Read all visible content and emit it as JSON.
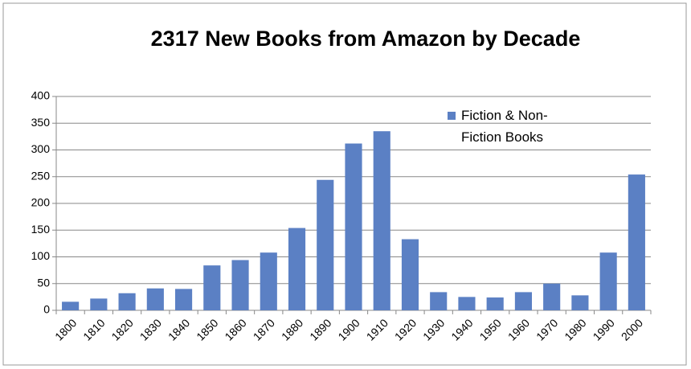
{
  "chart_data": {
    "type": "bar",
    "title": "2317 New Books from Amazon by Decade",
    "categories": [
      "1800",
      "1810",
      "1820",
      "1830",
      "1840",
      "1850",
      "1860",
      "1870",
      "1880",
      "1890",
      "1900",
      "1910",
      "1920",
      "1930",
      "1940",
      "1950",
      "1960",
      "1970",
      "1980",
      "1990",
      "2000"
    ],
    "series": [
      {
        "name": "Fiction & Non-Fiction Books",
        "color": "#5b80c4",
        "values": [
          16,
          22,
          32,
          41,
          40,
          84,
          94,
          108,
          154,
          244,
          312,
          335,
          133,
          34,
          25,
          24,
          34,
          50,
          28,
          108,
          254
        ]
      }
    ],
    "ylim": [
      0,
      400
    ],
    "yticks": [
      0,
      50,
      100,
      150,
      200,
      250,
      300,
      350,
      400
    ],
    "grid": true,
    "legend": "top-right"
  }
}
